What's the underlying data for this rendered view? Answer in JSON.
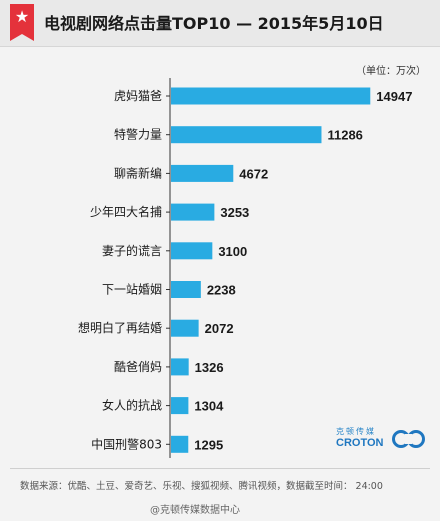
{
  "header": {
    "title": "电视剧网络点击量TOP10 — 2015年5月10日"
  },
  "unit_label": "（单位：万次）",
  "chart_data": {
    "type": "bar",
    "orientation": "horizontal",
    "categories": [
      "虎妈猫爸",
      "特警力量",
      "聊斋新编",
      "少年四大名捕",
      "妻子的谎言",
      "下一站婚姻",
      "想明白了再结婚",
      "酷爸俏妈",
      "女人的抗战",
      "中国刑警803"
    ],
    "values": [
      14947,
      11286,
      4672,
      3253,
      3100,
      2238,
      2072,
      1326,
      1304,
      1295
    ],
    "title": "电视剧网络点击量TOP10 — 2015年5月10日",
    "xlabel": "",
    "ylabel": "",
    "unit": "万次",
    "grid": false,
    "bar_color": "#29abe2"
  },
  "logo": {
    "cn": "克顿传媒",
    "en": "CROTON"
  },
  "footer": {
    "source": "数据来源：优酷、土豆、爱奇艺、乐视、搜狐视频、腾讯视频，数据截至时间： 24:00"
  },
  "watermark": "@克顿传媒数据中心",
  "colors": {
    "accent": "#e4323b",
    "bar": "#29abe2",
    "text": "#1a1a1a"
  }
}
